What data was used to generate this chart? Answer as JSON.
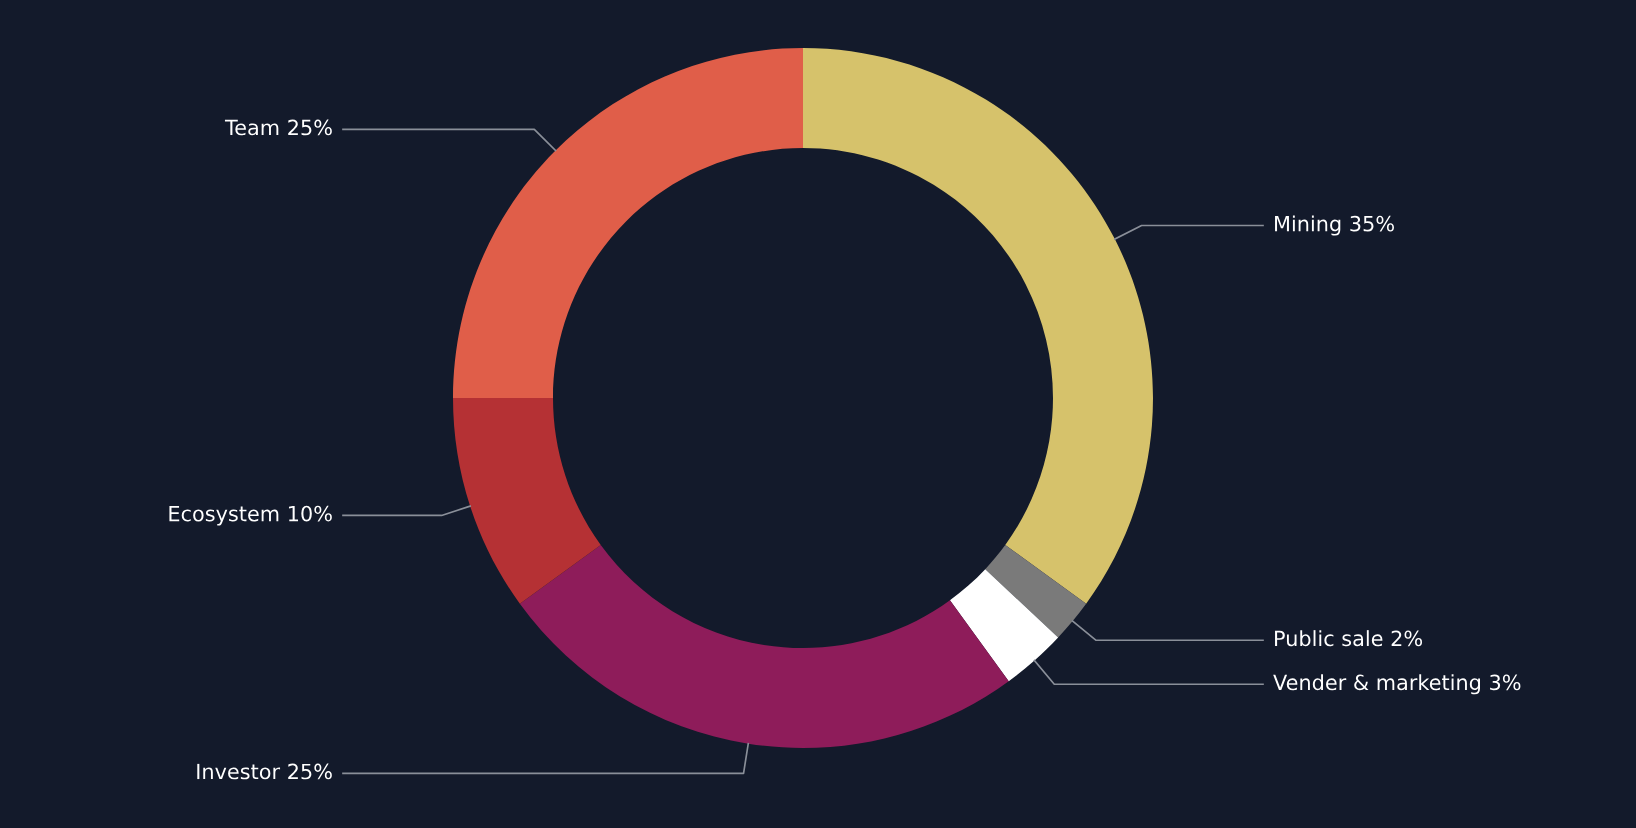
{
  "chart_data": {
    "type": "donut",
    "categories": [
      "Mining",
      "Public sale",
      "Vender & marketing",
      "Investor",
      "Ecosystem",
      "Team"
    ],
    "values": [
      35,
      2,
      3,
      25,
      10,
      25
    ],
    "value_labels": [
      "35%",
      "2%",
      "3%",
      "25%",
      "10%",
      "25%"
    ],
    "colors": [
      "#d6c26b",
      "#7a7a7a",
      "#ffffff",
      "#8e1c5a",
      "#b53134",
      "#e05e49"
    ],
    "legend": false
  }
}
